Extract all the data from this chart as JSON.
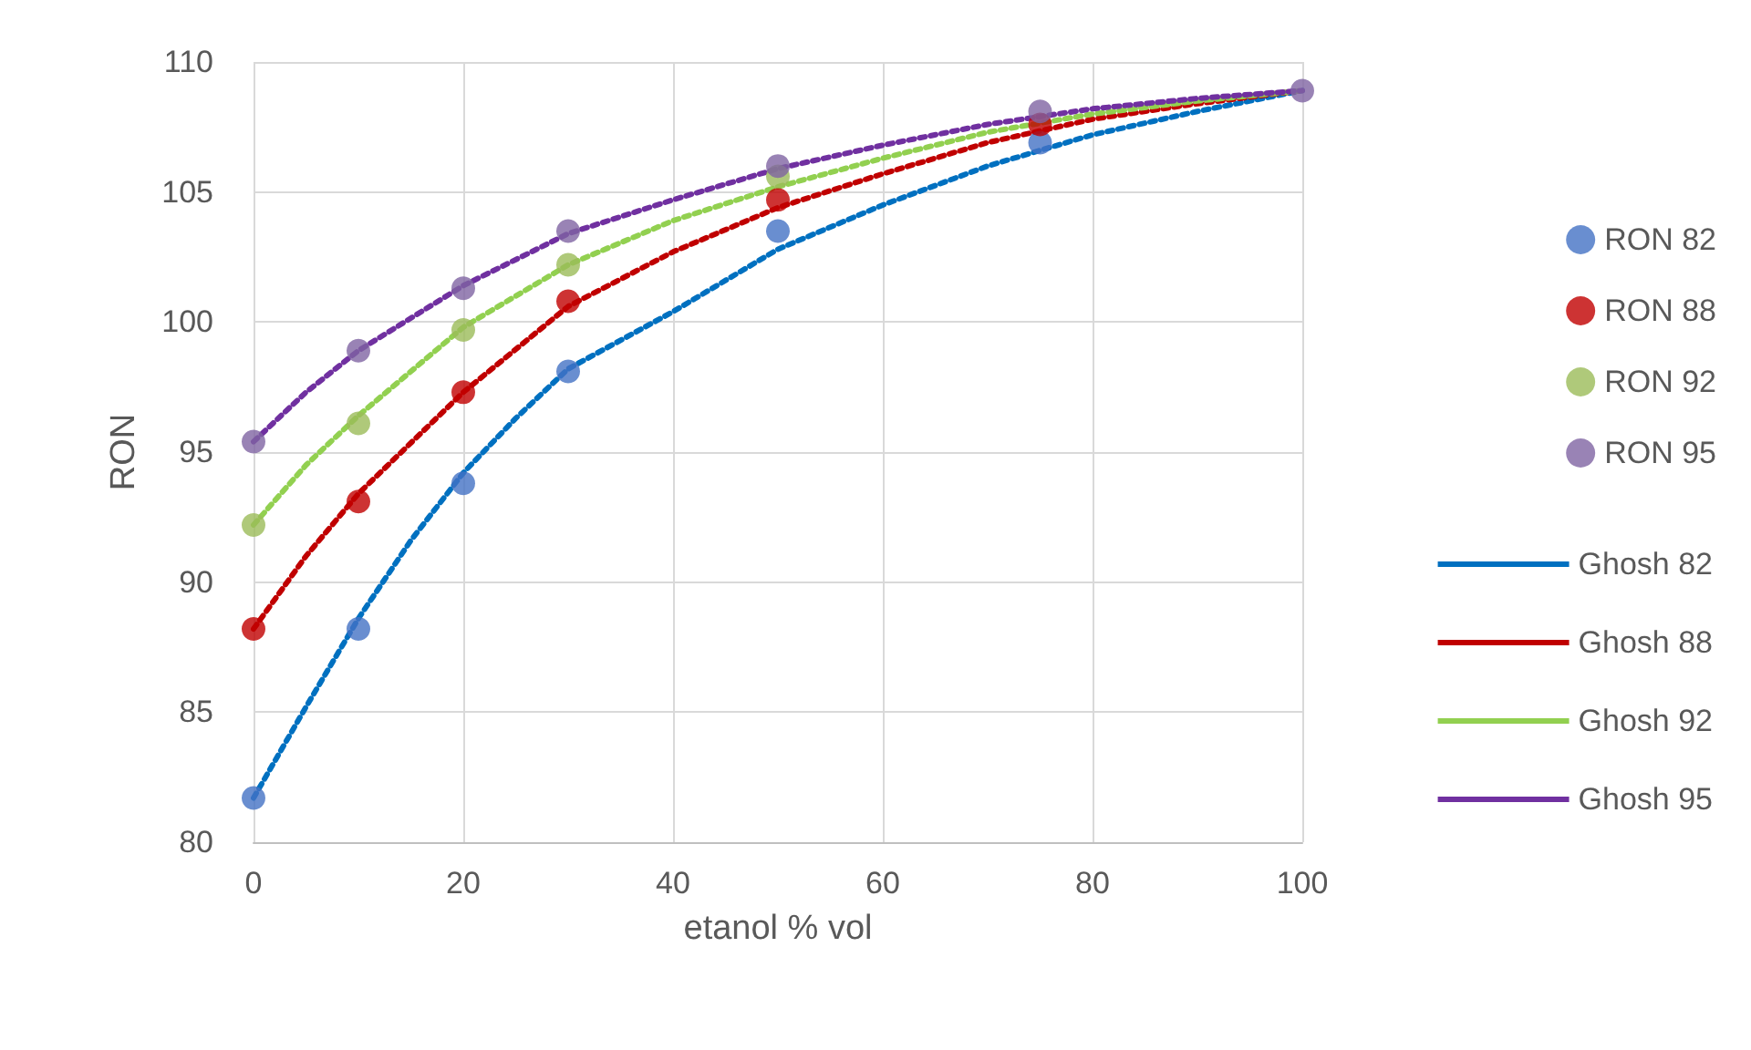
{
  "chart_data": {
    "type": "scatter",
    "xlabel": "etanol % vol",
    "ylabel": "RON",
    "x": [
      0,
      10,
      20,
      30,
      50,
      75,
      100
    ],
    "series": [
      {
        "name": "RON 82",
        "marker": "circle",
        "color": "#4472c4",
        "values": [
          81.7,
          88.2,
          93.8,
          98.1,
          103.5,
          106.9,
          null
        ]
      },
      {
        "name": "RON 88",
        "marker": "circle",
        "color": "#c00000",
        "values": [
          88.2,
          93.1,
          97.3,
          100.8,
          104.7,
          107.6,
          null
        ]
      },
      {
        "name": "RON 92",
        "marker": "circle",
        "color": "#9bbb59",
        "values": [
          92.2,
          96.1,
          99.7,
          102.2,
          105.6,
          null,
          null
        ]
      },
      {
        "name": "RON 95",
        "marker": "circle",
        "color": "#8064a2",
        "values": [
          95.4,
          98.9,
          101.3,
          103.5,
          106.0,
          108.1,
          108.9
        ]
      },
      {
        "name": "Ghosh 82",
        "type": "line",
        "marker": "none",
        "color": "#0070c0",
        "x": [
          0,
          5,
          10,
          15,
          20,
          25,
          30,
          40,
          50,
          60,
          70,
          80,
          90,
          100
        ],
        "values": [
          81.7,
          85.2,
          88.6,
          91.6,
          94.2,
          96.3,
          98.2,
          100.4,
          102.8,
          104.5,
          106.0,
          107.2,
          108.1,
          108.9
        ]
      },
      {
        "name": "Ghosh 88",
        "type": "line",
        "marker": "none",
        "color": "#c00000",
        "x": [
          0,
          5,
          10,
          20,
          30,
          40,
          50,
          60,
          70,
          80,
          90,
          100
        ],
        "values": [
          88.2,
          91.0,
          93.4,
          97.3,
          100.6,
          102.7,
          104.4,
          105.7,
          106.9,
          107.8,
          108.4,
          108.9
        ]
      },
      {
        "name": "Ghosh 92",
        "type": "line",
        "marker": "none",
        "color": "#92d050",
        "x": [
          0,
          5,
          10,
          20,
          30,
          40,
          50,
          60,
          70,
          80,
          90,
          100
        ],
        "values": [
          92.2,
          94.5,
          96.4,
          99.8,
          102.2,
          103.9,
          105.2,
          106.3,
          107.3,
          108.0,
          108.5,
          108.9
        ]
      },
      {
        "name": "Ghosh 95",
        "type": "line",
        "marker": "none",
        "color": "#7030a0",
        "x": [
          0,
          5,
          10,
          20,
          30,
          40,
          50,
          60,
          70,
          80,
          90,
          100
        ],
        "values": [
          95.4,
          97.3,
          98.9,
          101.4,
          103.4,
          104.7,
          105.9,
          106.8,
          107.6,
          108.2,
          108.6,
          108.9
        ]
      }
    ],
    "xlim": [
      0,
      100
    ],
    "xticks": [
      0,
      20,
      40,
      60,
      80,
      100
    ],
    "ylim": [
      80,
      110
    ],
    "yticks": [
      80,
      85,
      90,
      95,
      100,
      105,
      110
    ],
    "grid": true,
    "legend": "right",
    "line_style": "dotted"
  }
}
